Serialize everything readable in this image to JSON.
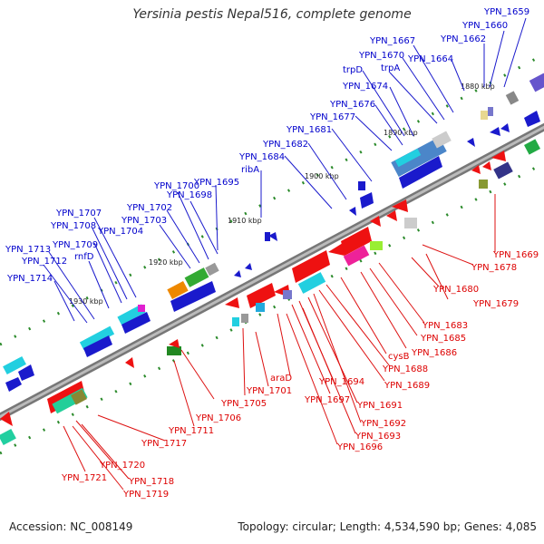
{
  "title": "Yersinia pestis Nepal516, complete genome",
  "footer": {
    "accession": "Accession: NC_008149",
    "topology": "Topology: circular; Length: 4,534,590 bp; Genes: 4,085"
  },
  "colors": {
    "forward_label": "#0000cc",
    "reverse_label": "#dd0000",
    "backbone": "#808080"
  },
  "ticks": [
    "1880 kbp",
    "1890 kbp",
    "1900 kbp",
    "1910 kbp",
    "1920 kbp",
    "1930 kbp"
  ],
  "forward_genes": [
    "YPN_1659",
    "YPN_1660",
    "YPN_1662",
    "YPN_1664",
    "YPN_1667",
    "YPN_1670",
    "trpA",
    "trpD",
    "YPN_1674",
    "YPN_1676",
    "YPN_1677",
    "YPN_1681",
    "YPN_1682",
    "YPN_1684",
    "ribA",
    "YPN_1695",
    "YPN_1700",
    "YPN_1698",
    "YPN_1702",
    "YPN_1703",
    "YPN_1704",
    "YPN_1707",
    "YPN_1708",
    "YPN_1709",
    "rnfD",
    "YPN_1713",
    "YPN_1712",
    "YPN_1714"
  ],
  "reverse_genes": [
    "YPN_1669",
    "YPN_1678",
    "YPN_1679",
    "YPN_1680",
    "YPN_1683",
    "YPN_1685",
    "YPN_1686",
    "cysB",
    "YPN_1688",
    "YPN_1689",
    "YPN_1691",
    "YPN_1694",
    "araD",
    "YPN_1697",
    "YPN_1692",
    "YPN_1693",
    "YPN_1696",
    "YPN_1701",
    "YPN_1705",
    "YPN_1706",
    "YPN_1711",
    "YPN_1717",
    "YPN_1720",
    "YPN_1718",
    "YPN_1719",
    "YPN_1721"
  ]
}
